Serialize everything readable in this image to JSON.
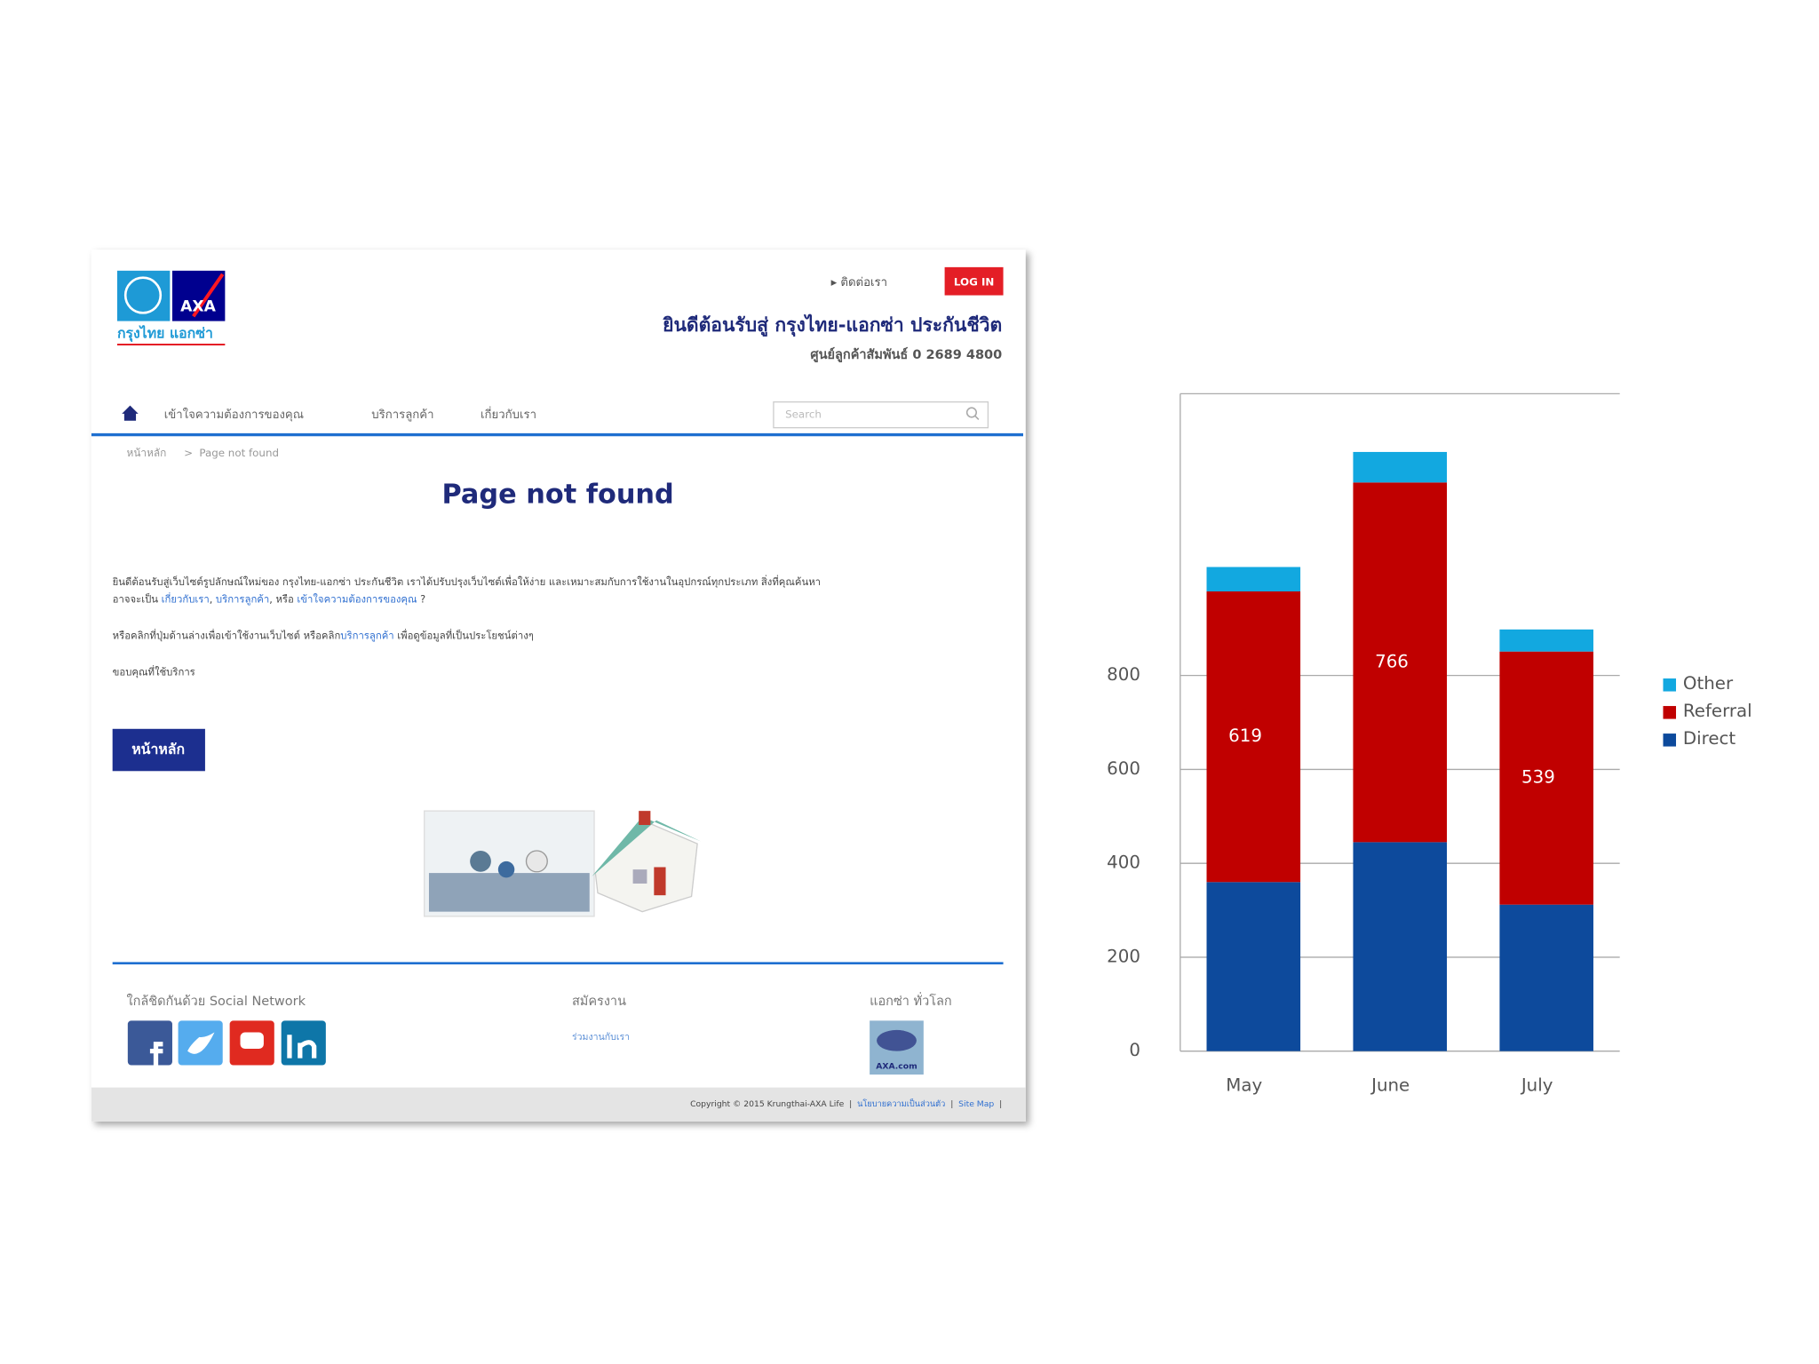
{
  "webpage": {
    "header": {
      "logo_text": "กรุงไทย แอกซ่า",
      "logo_brand": "AXA",
      "contact": "▸ ติดต่อเรา",
      "login": "LOG IN",
      "welcome": "ยินดีต้อนรับสู่ กรุงไทย-แอกซ่า ประกันชีวิต",
      "hotline": "ศูนย์ลูกค้าสัมพันธ์ 0 2689 4800"
    },
    "nav": {
      "items": [
        "เข้าใจความต้องการของคุณ",
        "บริการลูกค้า",
        "เกี่ยวกับเรา"
      ],
      "search": "Search"
    },
    "breadcrumb": {
      "home": "หน้าหลัก",
      "separator": ">",
      "current": "Page not found"
    },
    "title": "Page not found",
    "body": {
      "lines": [
        [
          {
            "text": "ยินดีต้อนรับสู่เว็บไซต์รูปลักษณ์ใหม่ของ กรุงไทย-แอกซ่า ประกันชีวิต เราได้ปรับปรุงเว็บไซต์เพื่อให้ง่าย และเหมาะสมกับการใช้งานในอุปกรณ์ทุกประเภท สิ่งที่คุณค้นหา",
            "link": false
          }
        ],
        [
          {
            "text": "อาจจะเป็น ",
            "link": false
          },
          {
            "text": "เกี่ยวกับเรา",
            "link": true
          },
          {
            "text": ", ",
            "link": false
          },
          {
            "text": "บริการลูกค้า",
            "link": true
          },
          {
            "text": ", หรือ ",
            "link": false
          },
          {
            "text": "เข้าใจความต้องการของคุณ",
            "link": true
          },
          {
            "text": " ?",
            "link": false
          }
        ],
        [
          {
            "text": "หรือคลิกที่ปุ่มด้านล่างเพื่อเข้าใช้งานเว็บไซต์ หรือคลิก",
            "link": false
          },
          {
            "text": "บริการลูกค้า",
            "link": true
          },
          {
            "text": " เพื่อดูข้อมูลที่เป็นประโยชน์ต่างๆ",
            "link": false
          }
        ],
        [
          {
            "text": "ขอบคุณที่ใช้บริการ",
            "link": false
          }
        ]
      ],
      "button": "หน้าหลัก"
    },
    "footer": {
      "social": "ใกล้ชิดกันด้วย Social Network",
      "jobs": "สมัครงาน",
      "jobs_link": "ร่วมงานกับเรา",
      "global": "แอกซ่า ทั่วโลก",
      "global_link": "AXA.com",
      "copyright": [
        {
          "text": "Copyright © 2015 Krungthai-AXA Life  |  ",
          "link": false
        },
        {
          "text": "นโยบายความเป็นส่วนตัว",
          "link": true
        },
        {
          "text": "  |  ",
          "link": false
        },
        {
          "text": "Site Map",
          "link": true
        },
        {
          "text": "  |",
          "link": false
        }
      ]
    }
  },
  "chart_data": {
    "type": "stacked_bar",
    "categories": [
      "May",
      "June",
      "July"
    ],
    "series": [
      {
        "name": "Direct",
        "color": "#0d4a9c",
        "values": [
          360,
          445,
          312
        ]
      },
      {
        "name": "Referral",
        "color": "#c00000",
        "values": [
          619,
          766,
          539
        ],
        "show_labels": true
      },
      {
        "name": "Other",
        "color": "#12a8e0",
        "values": [
          52,
          65,
          47
        ]
      }
    ],
    "ylim": [
      0,
      1400
    ],
    "yticks": [
      0,
      200,
      400,
      600,
      800
    ],
    "grid": true,
    "legend": "right"
  }
}
